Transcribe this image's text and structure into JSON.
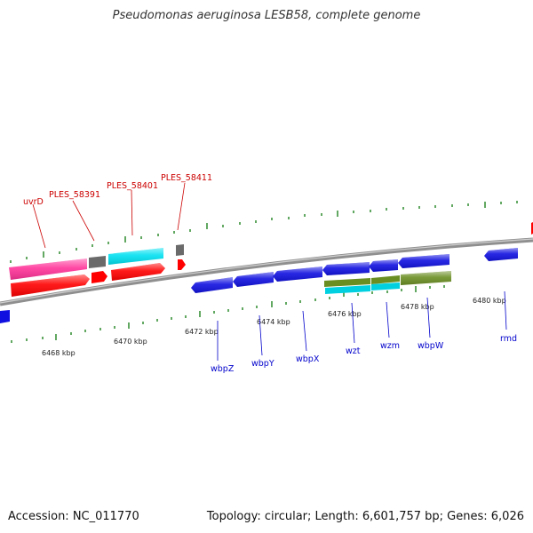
{
  "header": {
    "title": "Pseudomonas aeruginosa LESB58, complete genome"
  },
  "footer": {
    "accession": "Accession: NC_011770",
    "summary": "Topology: circular; Length: 6,601,757 bp; Genes: 6,026"
  },
  "colors": {
    "backbone": "#8f8f8f",
    "tick": "#2e8b2e",
    "red_gene": "#ff0000",
    "pink_gene": "#ff3399",
    "cyan_gene": "#00e0f0",
    "grey_gene": "#6a6a6a",
    "blue_gene": "#1010e0",
    "olive_gene": "#6b8e23",
    "red_label": "#cc0000",
    "blue_label": "#0000cc"
  },
  "scale": {
    "tick_labels": [
      "6468 kbp",
      "6470 kbp",
      "6472 kbp",
      "6474 kbp",
      "6476 kbp",
      "6478 kbp",
      "6480 kbp"
    ]
  },
  "upper_labels": [
    "uvrD",
    "PLES_58391",
    "PLES_58401",
    "PLES_58411"
  ],
  "lower_labels": [
    "wbpZ",
    "wbpY",
    "wbpX",
    "wzt",
    "wzm",
    "wbpW",
    "rmd"
  ]
}
